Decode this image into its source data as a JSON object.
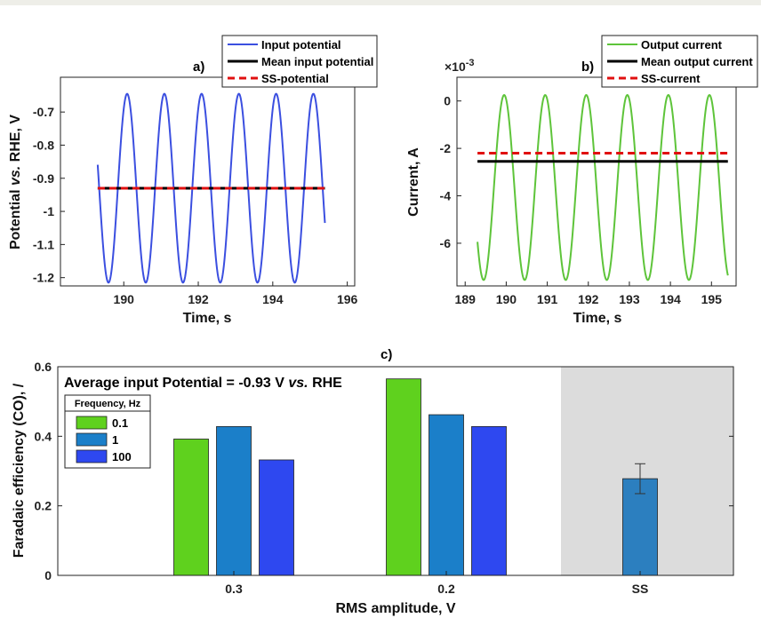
{
  "chart_data": [
    {
      "id": "a",
      "type": "line",
      "panel_label": "a)",
      "xlabel": "Time, s",
      "ylabel_parts": [
        "Potential ",
        "vs.",
        " RHE, V"
      ],
      "xlim": [
        188.3,
        196.2
      ],
      "ylim": [
        -1.225,
        -0.595
      ],
      "xticks": [
        190,
        192,
        194,
        196
      ],
      "yticks": [
        -0.7,
        -0.8,
        -0.9,
        -1,
        -1.1,
        -1.2
      ],
      "ytick_labels": [
        "-0.7",
        "-0.8",
        "-0.9",
        "-1",
        "-1.1",
        "-1.2"
      ],
      "legend_position": "top-right",
      "series": [
        {
          "name": "Input potential",
          "kind": "sine",
          "x_start": 189.3,
          "x_end": 195.4,
          "mean": -0.93,
          "amplitude": 0.285,
          "period": 1.0,
          "phase_x": 189.59,
          "phase_sign": -1,
          "color": "#3b4fe0"
        },
        {
          "name": "Mean input potential",
          "kind": "hline",
          "x": [
            189.3,
            195.4
          ],
          "y": -0.93,
          "color": "#000000"
        },
        {
          "name": "SS-potential",
          "kind": "hline",
          "dashed": true,
          "x": [
            189.3,
            195.4
          ],
          "y": -0.93,
          "color": "#e01010"
        }
      ]
    },
    {
      "id": "b",
      "type": "line",
      "panel_label": "b)",
      "xlabel": "Time, s",
      "ylabel": "Current, A",
      "y_exponent": "×10",
      "y_exponent_power": "-3",
      "xlim": [
        188.8,
        195.6
      ],
      "ylim": [
        -7.8,
        1.0
      ],
      "xticks": [
        189,
        190,
        191,
        192,
        193,
        194,
        195
      ],
      "yticks": [
        0,
        -2,
        -4,
        -6
      ],
      "ytick_labels": [
        "0",
        "-2",
        "-4",
        "-6"
      ],
      "legend_position": "top-right",
      "series": [
        {
          "name": "Output current",
          "kind": "sine",
          "x_start": 189.3,
          "x_end": 195.4,
          "mean": -3.65,
          "amplitude": 3.9,
          "period": 1.0,
          "phase_x": 189.45,
          "phase_sign": -1,
          "color": "#5ec43a"
        },
        {
          "name": "Mean output current",
          "kind": "hline",
          "x": [
            189.3,
            195.4
          ],
          "y": -2.55,
          "color": "#000000"
        },
        {
          "name": "SS-current",
          "kind": "hline",
          "dashed": true,
          "x": [
            189.3,
            195.4
          ],
          "y": -2.2,
          "color": "#e01010"
        }
      ]
    },
    {
      "id": "c",
      "type": "bar",
      "panel_label": "c)",
      "xlabel": "RMS amplitude, V",
      "ylabel": "Faradaic efficiency (CO), /",
      "annotation_parts": [
        "Average input Potential = -0.93 V ",
        "vs.",
        "  RHE"
      ],
      "ylim": [
        0,
        0.6
      ],
      "yticks": [
        0,
        0.2,
        0.4,
        0.6
      ],
      "ytick_labels": [
        "0",
        "0.2",
        "0.4",
        "0.6"
      ],
      "categories": [
        "0.3",
        "0.2",
        "SS"
      ],
      "legend_title": "Frequency, Hz",
      "legend_position": "top-left",
      "series": [
        {
          "name": "0.1",
          "color": "#5fd11e",
          "values": [
            0.392,
            0.565,
            null
          ]
        },
        {
          "name": "1",
          "color": "#1b7fc9",
          "values": [
            0.428,
            0.462,
            null
          ]
        },
        {
          "name": "100",
          "color": "#2e48f0",
          "values": [
            0.332,
            0.428,
            null
          ]
        }
      ],
      "ss_bar": {
        "value": 0.278,
        "error": 0.043,
        "color": "#2c7fbf"
      },
      "shaded_region": "SS"
    }
  ]
}
